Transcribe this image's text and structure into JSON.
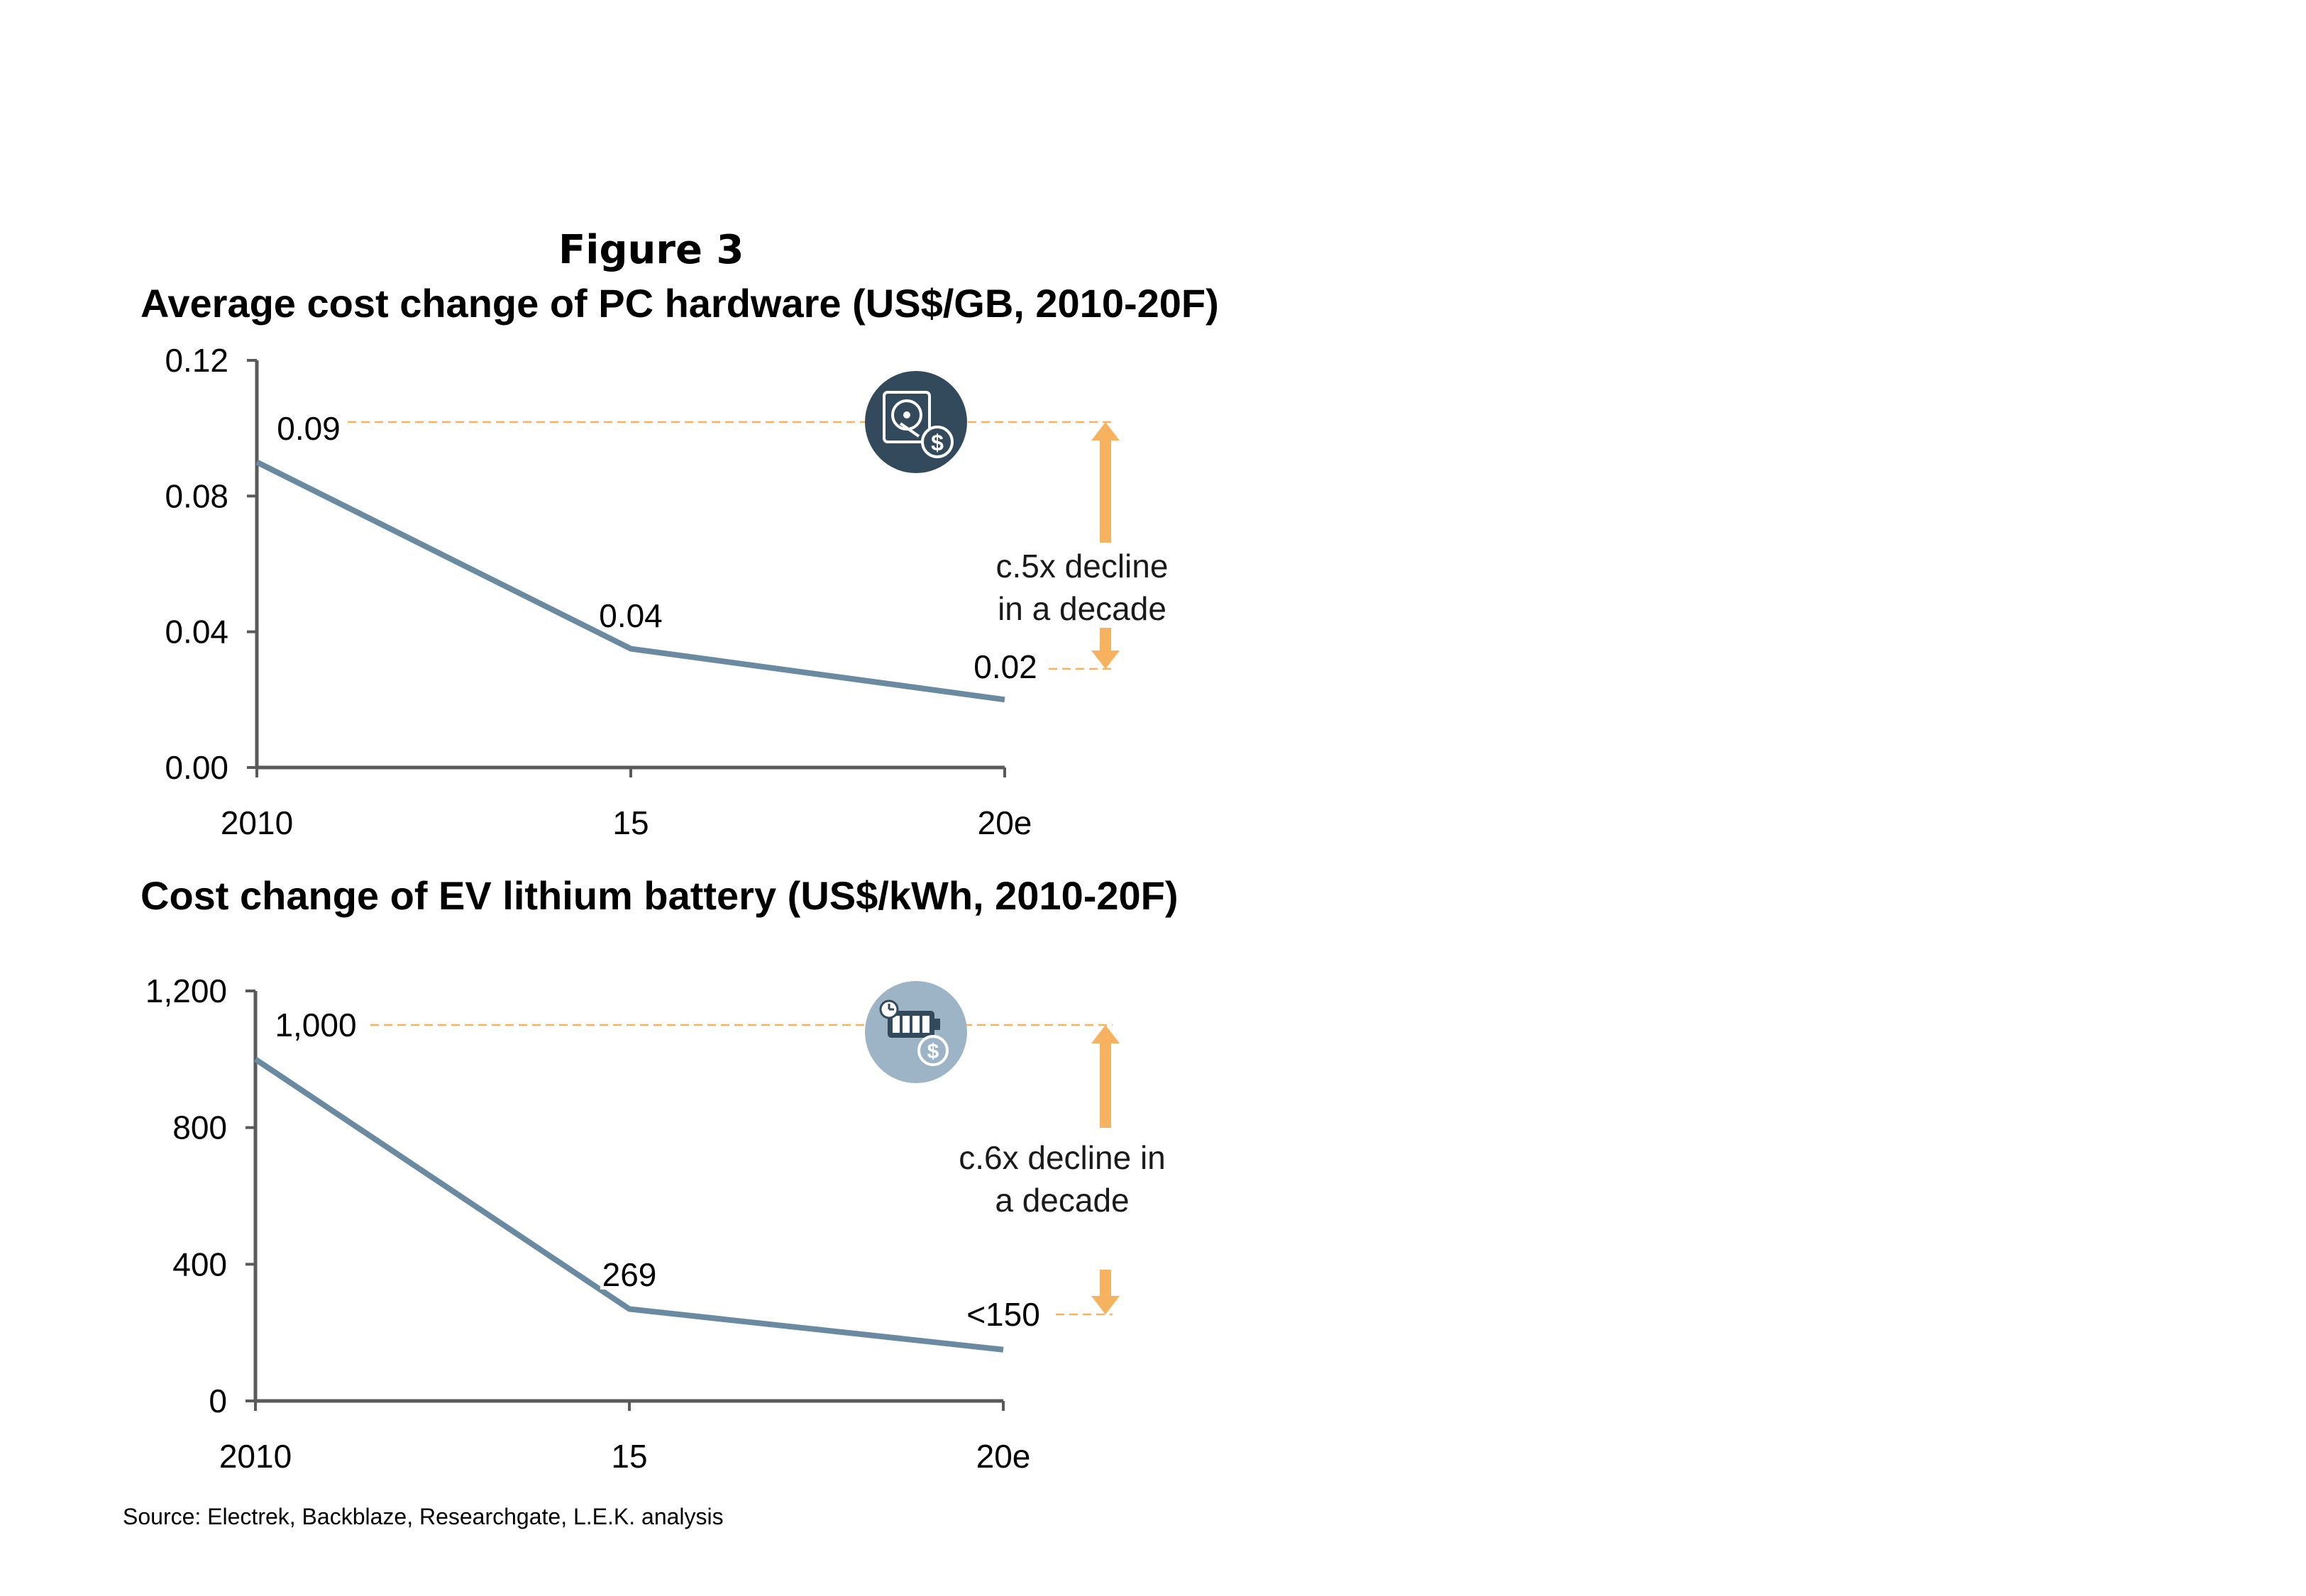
{
  "figure_label": "Figure 3",
  "source": "Source: Electrek, Backblaze, Researchgate, L.E.K. analysis",
  "colors": {
    "line": "#6a8aa1",
    "axis": "#5a5a5a",
    "annotation": "#f6b25e",
    "icon_dark": "#334a5c",
    "icon_light": "#9cb4c6"
  },
  "chart_data": [
    {
      "type": "line",
      "title": "Average cost change of PC hardware (US$/GB, 2010-20F)",
      "categories": [
        "2010",
        "15",
        "20e"
      ],
      "values": [
        0.09,
        0.035,
        0.02
      ],
      "data_labels": [
        "0.09",
        "0.04",
        "0.02"
      ],
      "ylim": [
        0,
        0.12
      ],
      "yticks": [
        "0.00",
        "0.04",
        "0.08",
        "0.12"
      ],
      "grid": false,
      "annotation": [
        "c.5x decline",
        "in a decade"
      ],
      "icon": "hard-drive-cost-icon"
    },
    {
      "type": "line",
      "title": "Cost change of EV lithium battery (US$/kWh, 2010-20F)",
      "categories": [
        "2010",
        "15",
        "20e"
      ],
      "values": [
        1000,
        269,
        150
      ],
      "data_labels": [
        "1,000",
        "269",
        "<150"
      ],
      "ylim": [
        0,
        1200
      ],
      "yticks": [
        "0",
        "400",
        "800",
        "1,200"
      ],
      "grid": false,
      "annotation": [
        "c.6x decline in",
        "a decade"
      ],
      "icon": "battery-cost-icon"
    }
  ]
}
